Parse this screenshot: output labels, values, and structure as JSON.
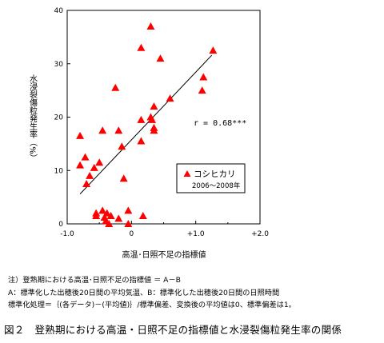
{
  "chart_data": {
    "type": "scatter",
    "title": "",
    "xlabel": "高温･日照不足の指標値",
    "ylabel": "水浸裂傷粒発生率（%）",
    "xlim": [
      -1.0,
      2.0
    ],
    "ylim": [
      0,
      40
    ],
    "x_ticks": [
      -1.0,
      0,
      1.0,
      2.0
    ],
    "x_tick_labels": [
      "-1.0",
      "0",
      "+1.0",
      "+2.0"
    ],
    "y_ticks": [
      0,
      10,
      20,
      30,
      40
    ],
    "y_tick_labels": [
      "0",
      "10",
      "20",
      "30",
      "40"
    ],
    "minor_x_ticks": [
      -0.5,
      0.5,
      1.5
    ],
    "grid": false,
    "series": [
      {
        "name": "コシヒカリ",
        "marker": "triangle",
        "color": "#ff0000",
        "x": [
          -0.8,
          -0.8,
          -0.72,
          -0.7,
          -0.65,
          -0.58,
          -0.55,
          -0.55,
          -0.5,
          -0.45,
          -0.45,
          -0.42,
          -0.4,
          -0.38,
          -0.35,
          -0.32,
          -0.25,
          -0.2,
          -0.2,
          -0.15,
          -0.12,
          -0.05,
          -0.05,
          0.15,
          0.15,
          0.15,
          0.18,
          0.3,
          0.3,
          0.32,
          0.35,
          0.35,
          0.35,
          0.45,
          0.6,
          1.1,
          1.12,
          1.27
        ],
        "y": [
          11,
          16.5,
          12.5,
          7.5,
          9,
          10.5,
          1.5,
          2,
          11.5,
          17.5,
          2.5,
          1.2,
          0.5,
          2,
          0,
          1.5,
          25.5,
          17.5,
          1,
          14.5,
          8.5,
          2.5,
          0,
          33,
          19.5,
          15.5,
          1.5,
          37,
          20,
          19.5,
          22,
          18,
          17.5,
          31,
          23.5,
          25,
          27.5,
          32.5
        ]
      }
    ],
    "trendline": {
      "x": [
        -0.8,
        1.25
      ],
      "y": [
        5.6,
        31.6
      ]
    },
    "annotation": "r = 0.68***",
    "legend": {
      "position": "center-right",
      "label": "コシヒカリ",
      "sublabel": "2006～2008年"
    }
  },
  "notes": [
    "注）登熟期における高温･日照不足の指標値 ＝ A－B",
    "A：標準化した出穂後20日間の平均気温、B：標準化した出穂後20日間の日照時間",
    "標準化処理＝｛(各データ)－(平均値)｝/標準偏差、変換後の平均値は0、標準偏差は1。"
  ],
  "caption": "図２　登熟期における高温・日照不足の指標値と水浸裂傷粒発生率の関係"
}
